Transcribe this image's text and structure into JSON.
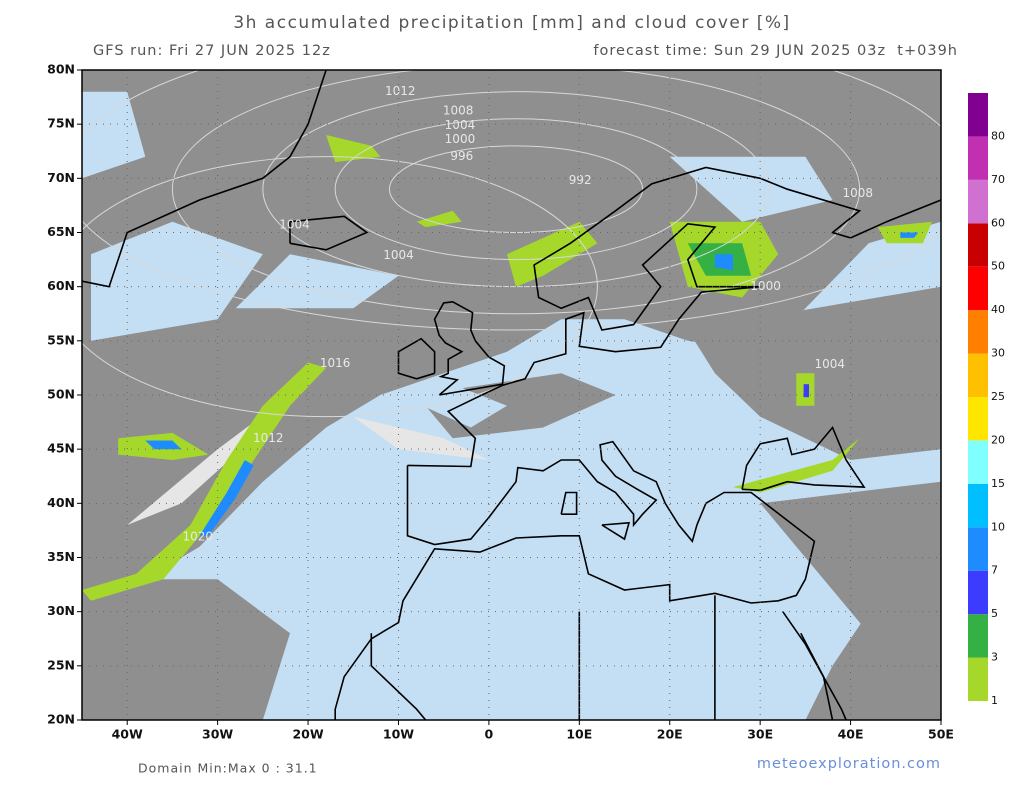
{
  "header": {
    "title": "3h accumulated precipitation [mm] and cloud cover [%]",
    "run": "GFS run: Fri 27 JUN 2025 12z",
    "forecast": "forecast time: Sun 29 JUN 2025 03z  t+039h"
  },
  "map": {
    "lon_lim": [
      -45,
      50
    ],
    "lat_lim": [
      20,
      80
    ],
    "lon_ticks": [
      {
        "value": -40,
        "label": "40W"
      },
      {
        "value": -30,
        "label": "30W"
      },
      {
        "value": -20,
        "label": "20W"
      },
      {
        "value": -10,
        "label": "10W"
      },
      0,
      {
        "value": 10,
        "label": "10E"
      },
      {
        "value": 20,
        "label": "20E"
      },
      {
        "value": 30,
        "label": "30E"
      },
      {
        "value": 40,
        "label": "40E"
      },
      {
        "value": 50,
        "label": "50E"
      }
    ],
    "lat_ticks": [
      {
        "value": 20,
        "label": "20N"
      },
      {
        "value": 25,
        "label": "25N"
      },
      {
        "value": 30,
        "label": "30N"
      },
      {
        "value": 35,
        "label": "35N"
      },
      {
        "value": 40,
        "label": "40N"
      },
      {
        "value": 45,
        "label": "45N"
      },
      {
        "value": 50,
        "label": "50N"
      },
      {
        "value": 55,
        "label": "55N"
      },
      {
        "value": 60,
        "label": "60N"
      },
      {
        "value": 65,
        "label": "65N"
      },
      {
        "value": 70,
        "label": "70N"
      },
      {
        "value": 75,
        "label": "75N"
      },
      {
        "value": 80,
        "label": "80N"
      }
    ],
    "isobar_labels": [
      "1012",
      "1008",
      "1004",
      "1000",
      "996",
      "992",
      "1004",
      "1004",
      "1016",
      "1012",
      "1020",
      "1000",
      "1008",
      "1004"
    ]
  },
  "colorbar": {
    "levels": [
      {
        "value": 1,
        "color": "#a5d82b"
      },
      {
        "value": 3,
        "color": "#34b044"
      },
      {
        "value": 5,
        "color": "#3c3cff"
      },
      {
        "value": 7,
        "color": "#1e8cff"
      },
      {
        "value": 10,
        "color": "#00bfff"
      },
      {
        "value": 15,
        "color": "#80ffff"
      },
      {
        "value": 20,
        "color": "#ffe600"
      },
      {
        "value": 25,
        "color": "#ffc000"
      },
      {
        "value": 30,
        "color": "#ff8000"
      },
      {
        "value": 40,
        "color": "#ff0000"
      },
      {
        "value": 50,
        "color": "#c80000"
      },
      {
        "value": 60,
        "color": "#d070d0"
      },
      {
        "value": 70,
        "color": "#c030b0"
      },
      {
        "value": 80,
        "color": "#800090"
      }
    ]
  },
  "footer": {
    "domain": "Domain Min:Max 0 : 31.1",
    "credit": "meteoexploration.com"
  }
}
